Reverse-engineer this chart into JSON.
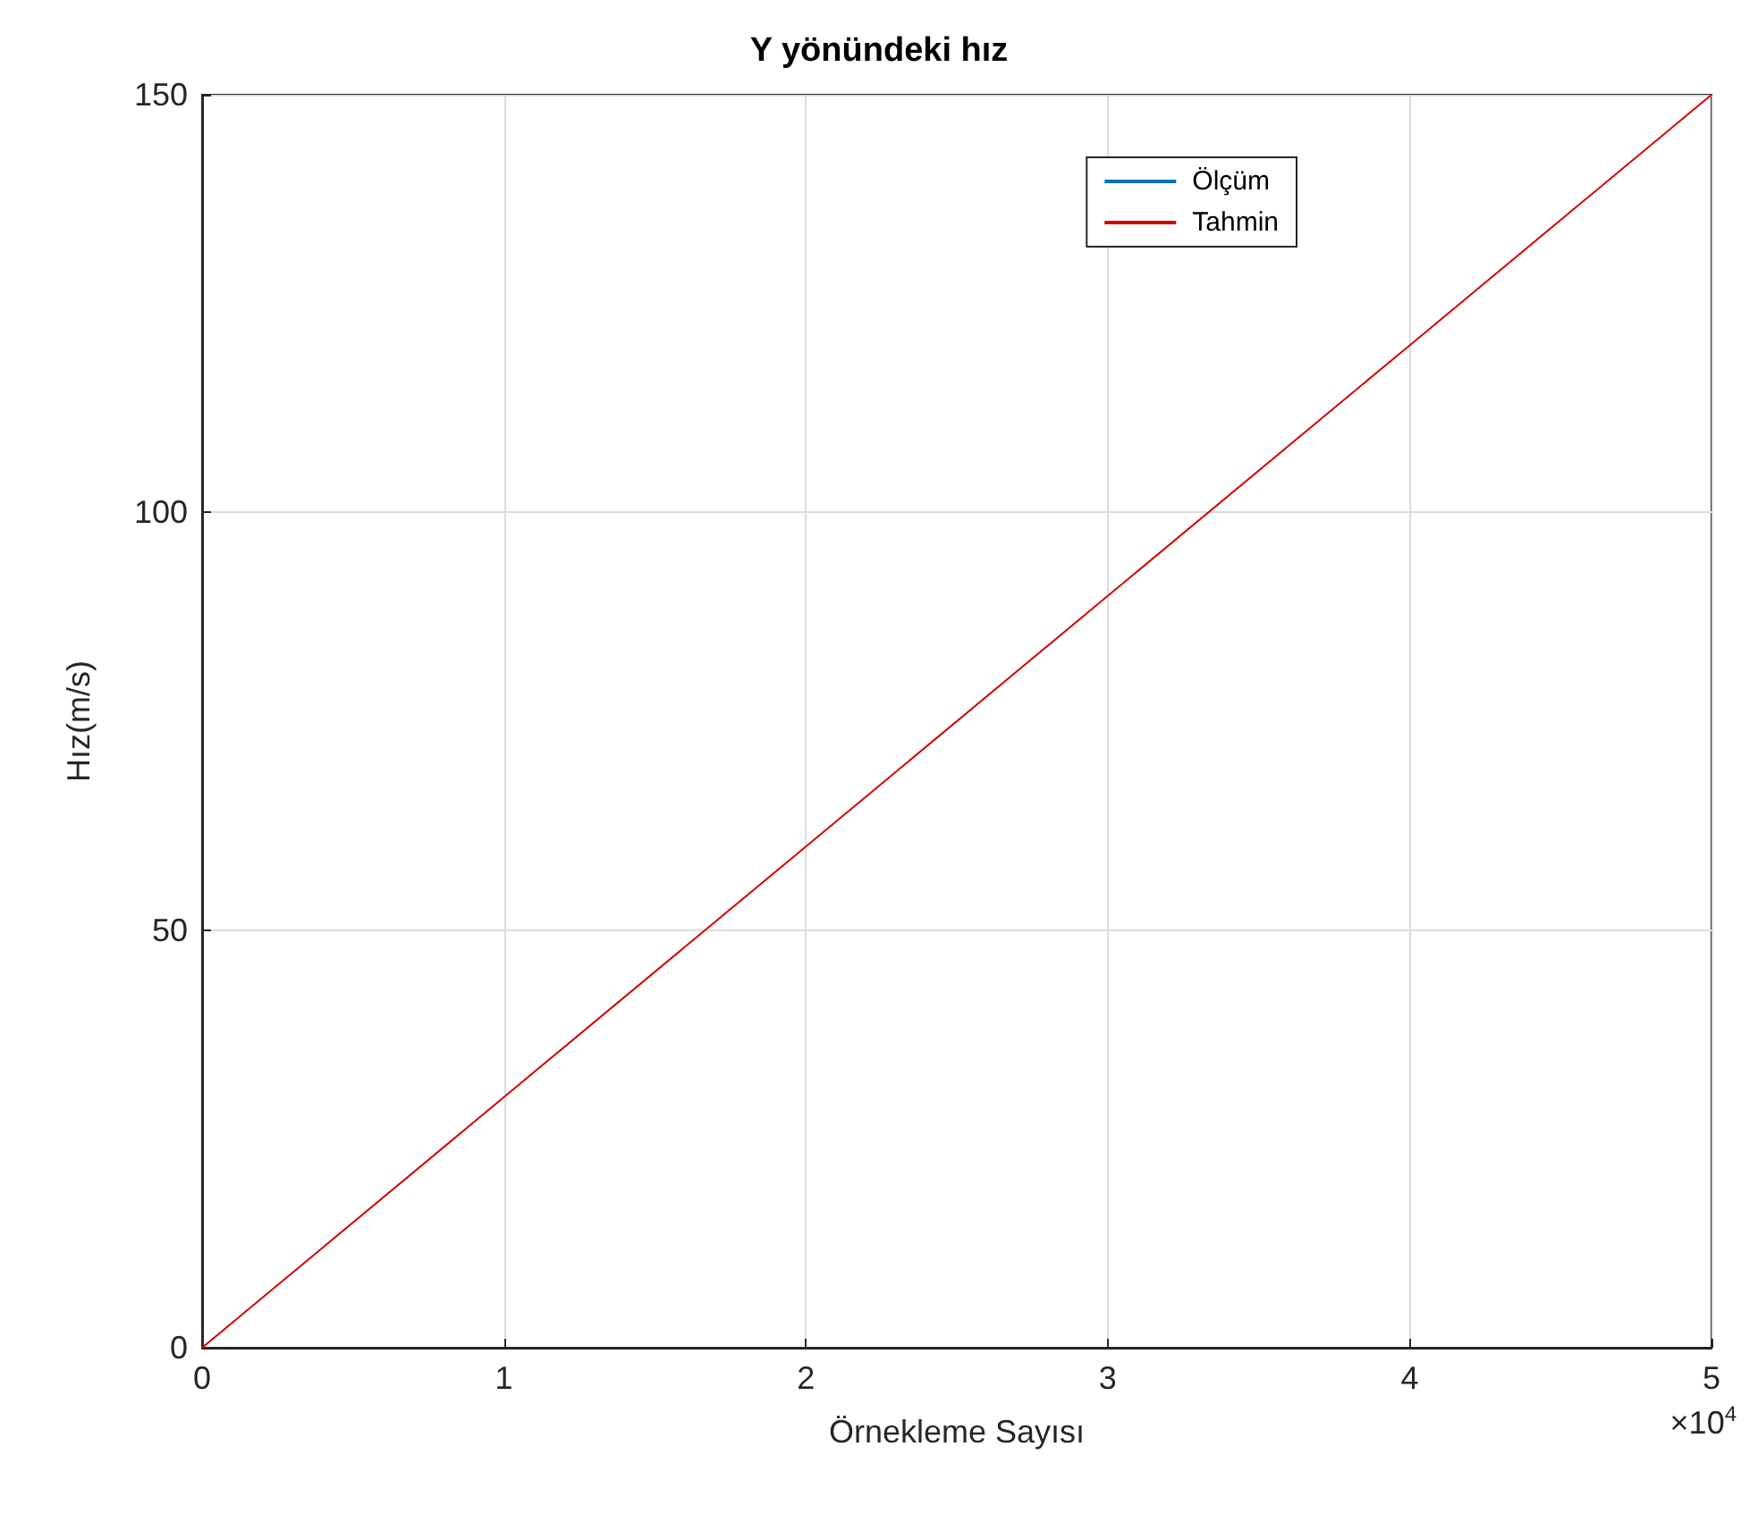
{
  "chart_data": {
    "type": "line",
    "title": "Y yönündeki hız",
    "xlabel": "Örnekleme Sayısı",
    "ylabel": "Hız(m/s)",
    "annotations": [
      "×10$^{4}$"
    ],
    "x": [
      0,
      1,
      2,
      3,
      4,
      5
    ],
    "series": [
      {
        "name": "Ölçüm",
        "color": "#0072bd",
        "values": [
          null,
          null,
          null,
          null,
          null,
          null
        ]
      },
      {
        "name": "Tahmin",
        "color": "#d40000",
        "values": [
          0,
          30,
          60,
          90,
          120,
          150
        ]
      }
    ],
    "xlim": [
      0,
      5
    ],
    "xticks": [
      0,
      1,
      2,
      3,
      4,
      5
    ],
    "ylim": [
      0,
      150
    ],
    "yticks": [
      0,
      50,
      100,
      150
    ],
    "grid": true,
    "legend": "top right",
    "marker": "none",
    "line_style": "solid"
  }
}
